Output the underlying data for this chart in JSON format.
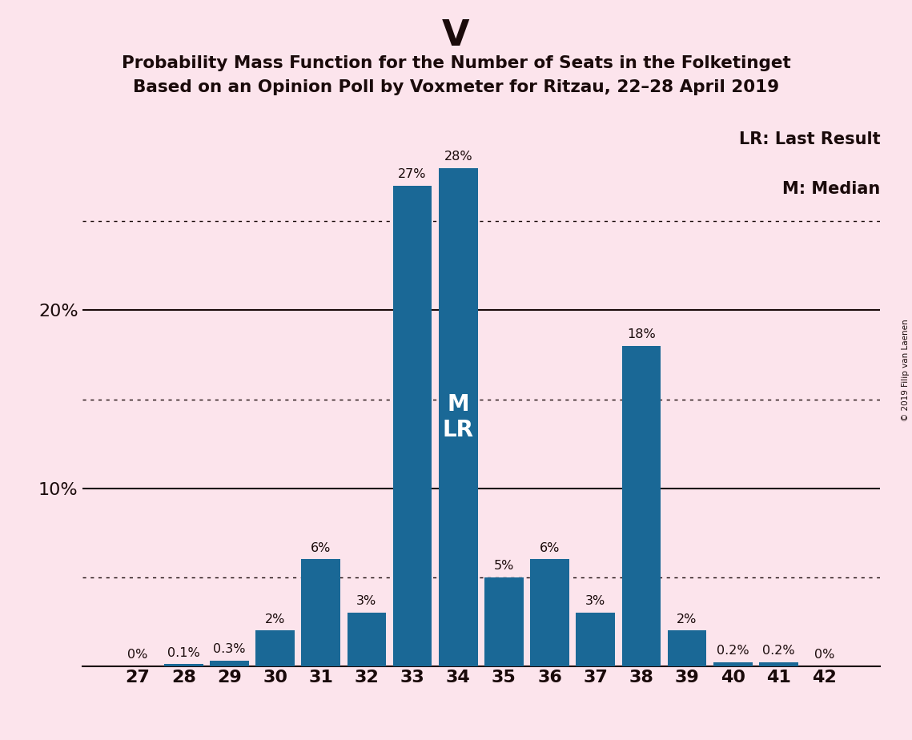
{
  "title_top": "V",
  "title_line1": "Probability Mass Function for the Number of Seats in the Folketinget",
  "title_line2": "Based on an Opinion Poll by Voxmeter for Ritzau, 22–28 April 2019",
  "copyright_text": "© 2019 Filip van Laenen",
  "categories": [
    27,
    28,
    29,
    30,
    31,
    32,
    33,
    34,
    35,
    36,
    37,
    38,
    39,
    40,
    41,
    42
  ],
  "values": [
    0.0,
    0.1,
    0.3,
    2.0,
    6.0,
    3.0,
    27.0,
    28.0,
    5.0,
    6.0,
    3.0,
    18.0,
    2.0,
    0.2,
    0.2,
    0.0
  ],
  "bar_color": "#1a6896",
  "background_color": "#fce4ec",
  "text_color": "#1a0a0a",
  "bar_labels": [
    "0%",
    "0.1%",
    "0.3%",
    "2%",
    "6%",
    "3%",
    "27%",
    "28%",
    "5%",
    "6%",
    "3%",
    "18%",
    "2%",
    "0.2%",
    "0.2%",
    "0%"
  ],
  "ml_bar_index": 7,
  "legend_lr": "LR: Last Result",
  "legend_m": "M: Median",
  "ysolid_lines": [
    10,
    20
  ],
  "ydotted_lines": [
    5,
    15,
    25
  ],
  "ylim": [
    0,
    31
  ],
  "ytick_labels_positions": [
    10,
    20
  ],
  "ytick_labels": [
    "10%",
    "20%"
  ]
}
